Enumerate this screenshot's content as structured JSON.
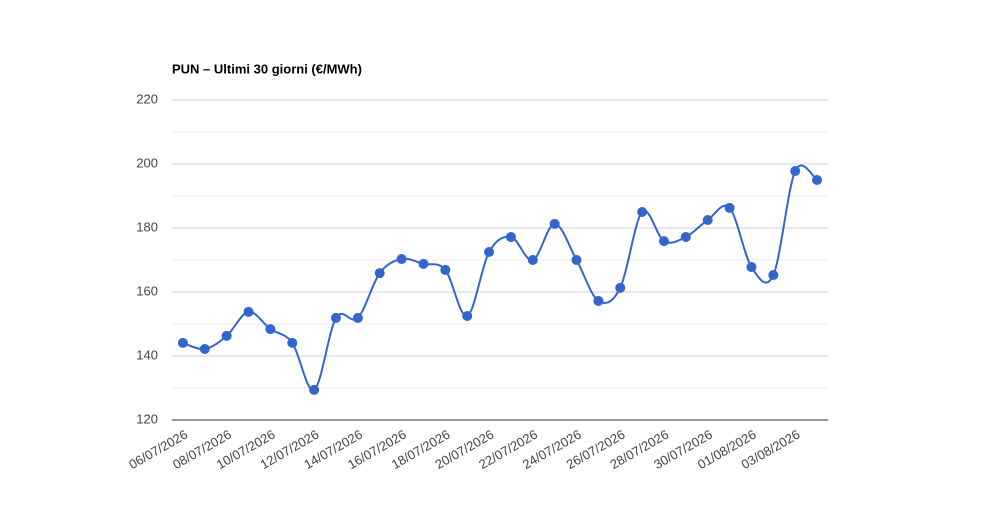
{
  "chart_data": {
    "type": "line",
    "title": "PUN – Ultimi 30 giorni (€/MWh)",
    "categories": [
      "06/07/2026",
      null,
      "08/07/2026",
      null,
      "10/07/2026",
      null,
      "12/07/2026",
      null,
      "14/07/2026",
      null,
      "16/07/2026",
      null,
      "18/07/2026",
      null,
      "20/07/2026",
      null,
      "22/07/2026",
      null,
      "24/07/2026",
      null,
      "26/07/2026",
      null,
      "28/07/2026",
      null,
      "30/07/2026",
      null,
      "01/08/2026",
      null,
      "03/08/2026",
      null
    ],
    "series": [
      {
        "color": "#3366cc",
        "values": [
          144.1,
          142.2,
          146.3,
          153.8,
          148.4,
          144.1,
          129.4,
          151.9,
          151.9,
          165.9,
          170.3,
          168.8,
          166.9,
          152.5,
          172.5,
          177.2,
          170,
          181.3,
          170,
          157.2,
          161.3,
          185,
          175.9,
          177.2,
          182.5,
          186.3,
          167.8,
          165.3,
          197.8,
          195
        ]
      }
    ],
    "ylim": [
      120,
      220
    ],
    "yticks": [
      120,
      140,
      160,
      180,
      200,
      220
    ],
    "minor_yticks": [
      130,
      150,
      170,
      190,
      210
    ],
    "grid": true
  }
}
